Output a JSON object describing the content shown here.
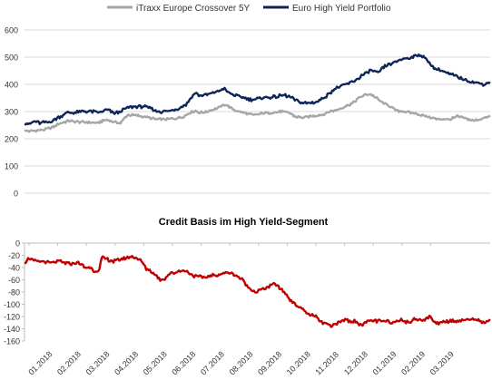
{
  "chart_data": [
    {
      "type": "line",
      "title": "",
      "xlabel": "",
      "ylabel": "",
      "ylim": [
        0,
        600
      ],
      "yticks": [
        0,
        100,
        200,
        300,
        400,
        500,
        600
      ],
      "grid": true,
      "legend_position": "top",
      "n_points": 321,
      "series": [
        {
          "name": "iTraxx Europe Crossover 5Y",
          "color": "#a6a6a6",
          "anchors": [
            [
              0,
              230
            ],
            [
              6,
              228
            ],
            [
              14,
              232
            ],
            [
              22,
              238
            ],
            [
              30,
              256
            ],
            [
              38,
              266
            ],
            [
              46,
              262
            ],
            [
              54,
              260
            ],
            [
              62,
              258
            ],
            [
              70,
              270
            ],
            [
              76,
              262
            ],
            [
              82,
              258
            ],
            [
              88,
              288
            ],
            [
              96,
              286
            ],
            [
              104,
              280
            ],
            [
              112,
              272
            ],
            [
              120,
              272
            ],
            [
              128,
              274
            ],
            [
              136,
              280
            ],
            [
              140,
              294
            ],
            [
              146,
              302
            ],
            [
              150,
              296
            ],
            [
              156,
              300
            ],
            [
              164,
              312
            ],
            [
              172,
              326
            ],
            [
              180,
              304
            ],
            [
              188,
              294
            ],
            [
              196,
              286
            ],
            [
              204,
              294
            ],
            [
              212,
              296
            ],
            [
              220,
              300
            ],
            [
              226,
              296
            ],
            [
              232,
              280
            ],
            [
              240,
              278
            ],
            [
              248,
              284
            ],
            [
              256,
              290
            ],
            [
              262,
              302
            ],
            [
              268,
              306
            ],
            [
              274,
              320
            ],
            [
              280,
              330
            ],
            [
              286,
              350
            ],
            [
              290,
              360
            ],
            [
              296,
              364
            ],
            [
              302,
              346
            ],
            [
              306,
              332
            ],
            [
              312,
              320
            ],
            [
              318,
              302
            ],
            [
              324,
              300
            ],
            [
              330,
              296
            ],
            [
              338,
              288
            ],
            [
              346,
              280
            ],
            [
              352,
              272
            ],
            [
              358,
              272
            ],
            [
              364,
              272
            ],
            [
              370,
              282
            ],
            [
              376,
              276
            ],
            [
              384,
              266
            ],
            [
              392,
              276
            ],
            [
              398,
              282
            ]
          ]
        },
        {
          "name": "Euro High Yield Portfolio",
          "color": "#0f2458",
          "anchors": [
            [
              0,
              260
            ],
            [
              4,
              252
            ],
            [
              8,
              262
            ],
            [
              14,
              258
            ],
            [
              22,
              262
            ],
            [
              30,
              280
            ],
            [
              36,
              296
            ],
            [
              42,
              296
            ],
            [
              50,
              300
            ],
            [
              58,
              300
            ],
            [
              64,
              296
            ],
            [
              70,
              306
            ],
            [
              76,
              296
            ],
            [
              80,
              296
            ],
            [
              86,
              310
            ],
            [
              94,
              320
            ],
            [
              102,
              318
            ],
            [
              108,
              312
            ],
            [
              114,
              300
            ],
            [
              120,
              300
            ],
            [
              126,
              304
            ],
            [
              132,
              312
            ],
            [
              138,
              326
            ],
            [
              142,
              350
            ],
            [
              146,
              370
            ],
            [
              150,
              358
            ],
            [
              156,
              362
            ],
            [
              162,
              370
            ],
            [
              166,
              376
            ],
            [
              170,
              385
            ],
            [
              174,
              370
            ],
            [
              180,
              360
            ],
            [
              186,
              352
            ],
            [
              192,
              345
            ],
            [
              198,
              345
            ],
            [
              204,
              352
            ],
            [
              210,
              352
            ],
            [
              216,
              355
            ],
            [
              222,
              360
            ],
            [
              228,
              352
            ],
            [
              234,
              335
            ],
            [
              242,
              330
            ],
            [
              250,
              335
            ],
            [
              258,
              358
            ],
            [
              264,
              380
            ],
            [
              270,
              392
            ],
            [
              276,
              402
            ],
            [
              282,
              412
            ],
            [
              288,
              432
            ],
            [
              292,
              440
            ],
            [
              296,
              452
            ],
            [
              302,
              440
            ],
            [
              306,
              460
            ],
            [
              310,
              470
            ],
            [
              316,
              480
            ],
            [
              320,
              490
            ],
            [
              326,
              496
            ],
            [
              332,
              500
            ],
            [
              338,
              510
            ],
            [
              342,
              496
            ],
            [
              346,
              480
            ],
            [
              350,
              460
            ],
            [
              356,
              450
            ],
            [
              362,
              440
            ],
            [
              368,
              430
            ],
            [
              374,
              420
            ],
            [
              380,
              412
            ],
            [
              386,
              406
            ],
            [
              392,
              400
            ],
            [
              398,
              408
            ]
          ]
        }
      ]
    },
    {
      "type": "line",
      "title": "Credit Basis im High Yield-Segment",
      "xlabel": "",
      "ylabel": "",
      "ylim": [
        -160,
        0
      ],
      "yticks": [
        0,
        -20,
        -40,
        -60,
        -80,
        -100,
        -120,
        -140,
        -160
      ],
      "grid": false,
      "n_points": 321,
      "series": [
        {
          "color": "#c00000",
          "anchors": [
            [
              0,
              -32
            ],
            [
              4,
              -24
            ],
            [
              8,
              -30
            ],
            [
              14,
              -30
            ],
            [
              22,
              -32
            ],
            [
              30,
              -30
            ],
            [
              38,
              -34
            ],
            [
              46,
              -32
            ],
            [
              52,
              -40
            ],
            [
              56,
              -40
            ],
            [
              60,
              -46
            ],
            [
              64,
              -44
            ],
            [
              66,
              -24
            ],
            [
              70,
              -26
            ],
            [
              76,
              -30
            ],
            [
              84,
              -26
            ],
            [
              90,
              -22
            ],
            [
              96,
              -24
            ],
            [
              100,
              -30
            ],
            [
              104,
              -42
            ],
            [
              108,
              -46
            ],
            [
              112,
              -52
            ],
            [
              116,
              -60
            ],
            [
              120,
              -58
            ],
            [
              124,
              -50
            ],
            [
              130,
              -48
            ],
            [
              134,
              -44
            ],
            [
              140,
              -48
            ],
            [
              146,
              -54
            ],
            [
              152,
              -56
            ],
            [
              158,
              -54
            ],
            [
              164,
              -52
            ],
            [
              170,
              -50
            ],
            [
              174,
              -48
            ],
            [
              178,
              -50
            ],
            [
              182,
              -54
            ],
            [
              186,
              -60
            ],
            [
              190,
              -70
            ],
            [
              194,
              -76
            ],
            [
              198,
              -80
            ],
            [
              202,
              -76
            ],
            [
              206,
              -74
            ],
            [
              210,
              -70
            ],
            [
              214,
              -66
            ],
            [
              218,
              -74
            ],
            [
              222,
              -80
            ],
            [
              226,
              -90
            ],
            [
              230,
              -98
            ],
            [
              234,
              -104
            ],
            [
              238,
              -108
            ],
            [
              242,
              -116
            ],
            [
              246,
              -118
            ],
            [
              250,
              -122
            ],
            [
              254,
              -130
            ],
            [
              258,
              -132
            ],
            [
              262,
              -138
            ],
            [
              266,
              -130
            ],
            [
              270,
              -130
            ],
            [
              274,
              -124
            ],
            [
              278,
              -128
            ],
            [
              282,
              -128
            ],
            [
              286,
              -132
            ],
            [
              290,
              -132
            ],
            [
              294,
              -128
            ],
            [
              298,
              -126
            ],
            [
              302,
              -128
            ],
            [
              306,
              -128
            ],
            [
              310,
              -128
            ],
            [
              314,
              -130
            ],
            [
              318,
              -128
            ],
            [
              322,
              -124
            ],
            [
              326,
              -130
            ],
            [
              330,
              -128
            ],
            [
              334,
              -124
            ],
            [
              338,
              -124
            ],
            [
              342,
              -126
            ],
            [
              346,
              -120
            ],
            [
              350,
              -128
            ],
            [
              354,
              -132
            ],
            [
              358,
              -128
            ],
            [
              362,
              -128
            ],
            [
              366,
              -126
            ],
            [
              370,
              -128
            ],
            [
              374,
              -126
            ],
            [
              378,
              -124
            ],
            [
              382,
              -126
            ],
            [
              386,
              -124
            ],
            [
              390,
              -128
            ],
            [
              394,
              -130
            ],
            [
              398,
              -126
            ]
          ]
        }
      ],
      "x_tick_labels": [
        "01.2018",
        "02.2018",
        "03.2018",
        "04.2018",
        "05.2018",
        "06.2018",
        "07.2018",
        "08.2018",
        "09.2018",
        "10.2018",
        "11.2018",
        "12.2018",
        "01.2019",
        "02.2019",
        "03.2019"
      ]
    }
  ]
}
